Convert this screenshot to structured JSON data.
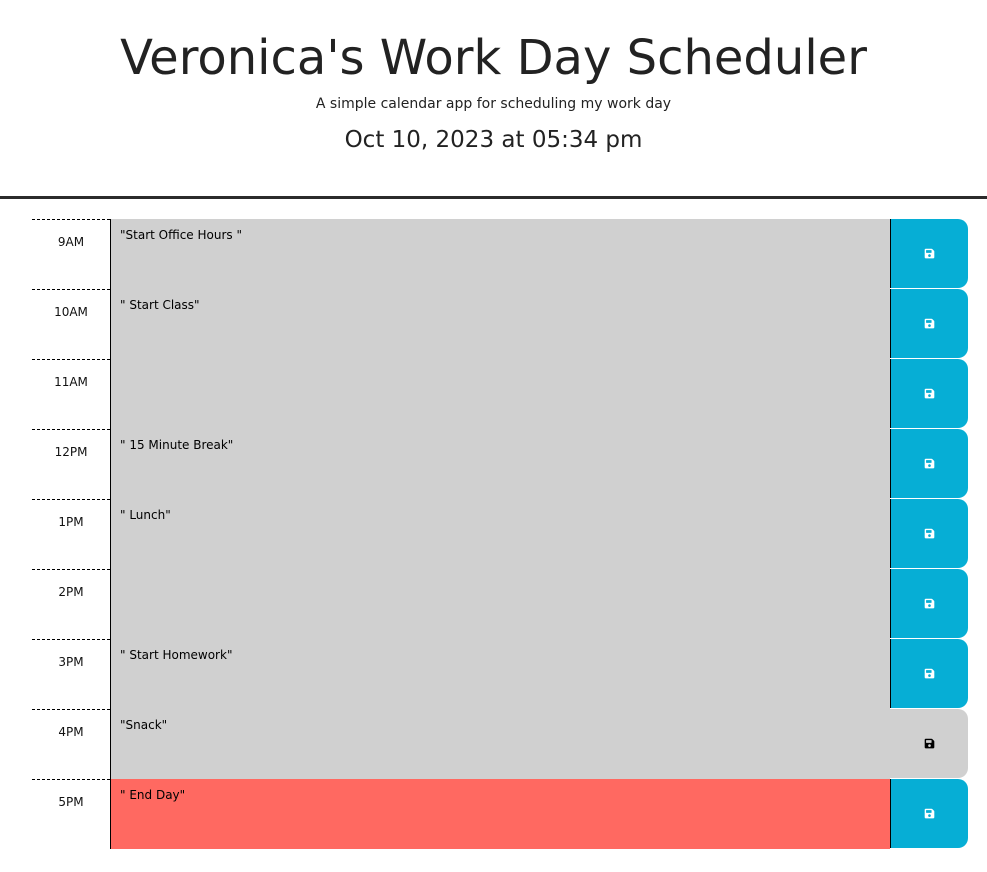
{
  "header": {
    "title": "Veronica's Work Day Scheduler",
    "subtitle": "A simple calendar app for scheduling my work day",
    "current_datetime": "Oct 10, 2023 at 05:34 pm"
  },
  "colors": {
    "past": "#d0d0d0",
    "present": "#ff6961",
    "save_button": "#06aed5",
    "save_icon": "#ffffff"
  },
  "save_icon_name": "floppy-disk-icon",
  "time_blocks": [
    {
      "hour": "9AM",
      "text": "\"Start Office Hours \"",
      "state": "past",
      "save_enabled": true
    },
    {
      "hour": "10AM",
      "text": "\" Start Class\"",
      "state": "past",
      "save_enabled": true
    },
    {
      "hour": "11AM",
      "text": "",
      "state": "past",
      "save_enabled": true
    },
    {
      "hour": "12PM",
      "text": "\" 15 Minute Break\"",
      "state": "past",
      "save_enabled": true
    },
    {
      "hour": "1PM",
      "text": "\" Lunch\"",
      "state": "past",
      "save_enabled": true
    },
    {
      "hour": "2PM",
      "text": "",
      "state": "past",
      "save_enabled": true
    },
    {
      "hour": "3PM",
      "text": "\" Start Homework\"",
      "state": "past",
      "save_enabled": true
    },
    {
      "hour": "4PM",
      "text": "\"Snack\"",
      "state": "past",
      "save_enabled": false
    },
    {
      "hour": "5PM",
      "text": "\" End Day\"",
      "state": "present",
      "save_enabled": true
    }
  ]
}
